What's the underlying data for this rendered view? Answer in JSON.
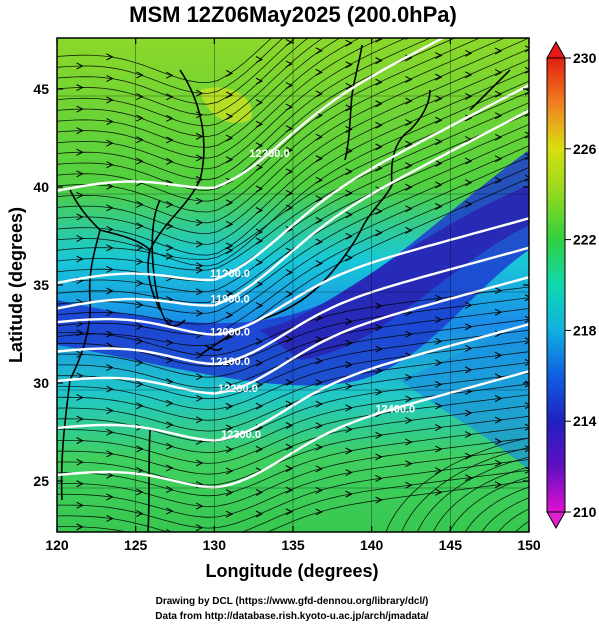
{
  "chart_data": {
    "type": "heatmap",
    "title": "MSM 12Z06May2025 (200.0hPa)",
    "xlabel": "Longitude (degrees)",
    "ylabel": "Latitude  (degrees)",
    "xlim": [
      120,
      150
    ],
    "ylim": [
      22.4,
      47.6
    ],
    "x_ticks": [
      "120",
      "125",
      "130",
      "135",
      "140",
      "145",
      "150"
    ],
    "y_ticks": [
      "25",
      "30",
      "35",
      "40",
      "45"
    ],
    "grid": true,
    "colorbar": {
      "range": [
        210,
        230
      ],
      "ticks": [
        "210",
        "214",
        "218",
        "222",
        "226",
        "230"
      ],
      "colors": [
        "#e010d0",
        "#3010c0",
        "#1060e0",
        "#10c8e0",
        "#20d080",
        "#40c020",
        "#b0e010",
        "#f0c020",
        "#f05010",
        "#e01010"
      ]
    },
    "contours": [
      {
        "label": "11700.0",
        "x": 133.5
      },
      {
        "label": "11800.0",
        "x": 131.0
      },
      {
        "label": "11900.0",
        "x": 131.0
      },
      {
        "label": "12000.0",
        "x": 131.0
      },
      {
        "label": "12100.0",
        "x": 131.0
      },
      {
        "label": "12200.0",
        "x": 131.5
      },
      {
        "label": "12300.0",
        "x": 131.7
      },
      {
        "label": "12400.0",
        "x": 141.5
      }
    ],
    "contour_labels_shown": [
      "12?00.0",
      "11?00.0",
      "11900.0",
      "12000.0",
      "12100.0",
      "12200.0",
      "12300.0",
      "12400.0"
    ]
  },
  "footer": {
    "line1": "Drawing by DCL (https://www.gfd-dennou.org/library/dcl/)",
    "line2": "Data from http://database.rish.kyoto-u.ac.jp/arch/jmadata/"
  }
}
